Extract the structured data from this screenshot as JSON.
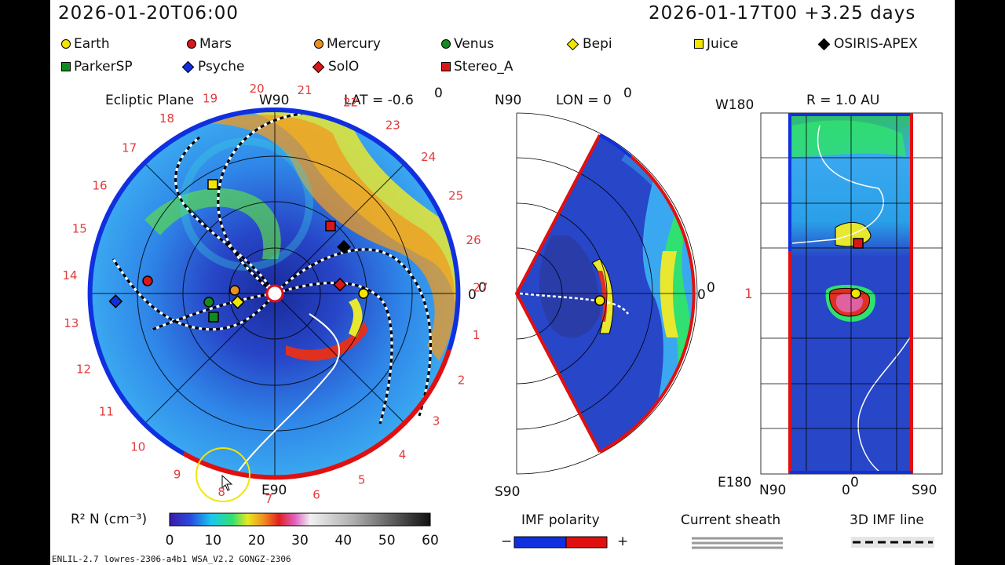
{
  "header": {
    "timestamp_left": "2026-01-20T06:00",
    "timestamp_right": "2026-01-17T00 +3.25 days"
  },
  "legend": [
    {
      "label": "Earth",
      "color": "#f2e600",
      "shape": "circle"
    },
    {
      "label": "Mars",
      "color": "#d81818",
      "shape": "circle"
    },
    {
      "label": "Mercury",
      "color": "#e89020",
      "shape": "circle"
    },
    {
      "label": "Venus",
      "color": "#138a20",
      "shape": "circle"
    },
    {
      "label": "Bepi",
      "color": "#f2e600",
      "shape": "diamond"
    },
    {
      "label": "Juice",
      "color": "#f2e600",
      "shape": "square"
    },
    {
      "label": "OSIRIS-APEX",
      "color": "#000000",
      "shape": "diamond"
    },
    {
      "label": "ParkerSP",
      "color": "#138a20",
      "shape": "square"
    },
    {
      "label": "Psyche",
      "color": "#1030e0",
      "shape": "diamond"
    },
    {
      "label": "SolO",
      "color": "#d81818",
      "shape": "diamond"
    },
    {
      "label": "Stereo_A",
      "color": "#d81818",
      "shape": "square"
    }
  ],
  "ecliptic": {
    "title": "Ecliptic Plane",
    "w90": "W90",
    "e90": "E90",
    "lat": "LAT = -0.6",
    "deg": "0",
    "zero": "0",
    "ticks": [
      "20",
      "21",
      "22",
      "23",
      "24",
      "25",
      "26",
      "27",
      "1",
      "2",
      "3",
      "4",
      "5",
      "6",
      "7",
      "8",
      "9",
      "10",
      "11",
      "12",
      "13",
      "14",
      "15",
      "16",
      "17",
      "18",
      "19"
    ]
  },
  "meridional": {
    "n90": "N90",
    "s90": "S90",
    "lon": "LON = 0",
    "deg": "0",
    "zero": "0",
    "sup": "0"
  },
  "map": {
    "title": "R = 1.0 AU",
    "w180": "W180",
    "e180": "E180",
    "n90": "N90",
    "s90": "S90",
    "zero": "0",
    "sup": "0",
    "one": "1"
  },
  "colorbar": {
    "label": "R² N (cm⁻³)",
    "ticks": [
      "0",
      "10",
      "20",
      "30",
      "40",
      "50",
      "60"
    ]
  },
  "imf": {
    "label": "IMF polarity",
    "minus": "−",
    "plus": "+"
  },
  "sheath": {
    "label": "Current sheath"
  },
  "imfline": {
    "label": "3D IMF line"
  },
  "footer": {
    "label": "ENLIL-2.7 lowres-2306-a4b1 WSA_V2.2 GONGZ-2306"
  },
  "colors": {
    "negative": "#1030e0",
    "positive": "#e01010"
  }
}
